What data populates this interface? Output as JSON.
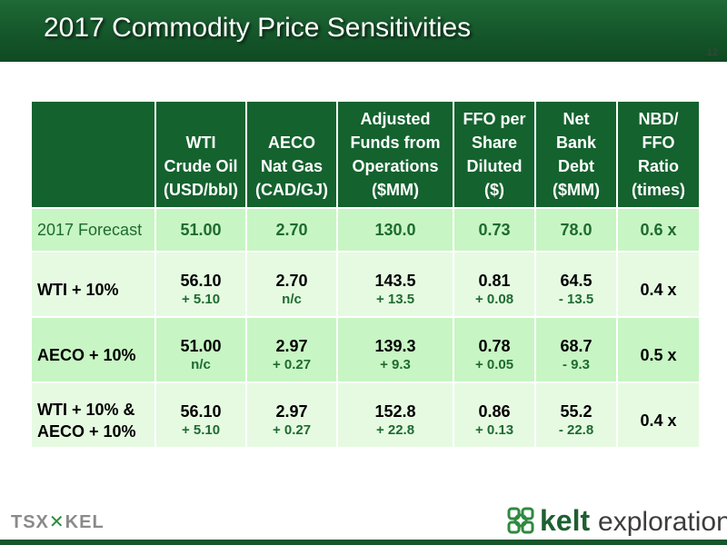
{
  "header": {
    "title": "2017 Commodity Price Sensitivities"
  },
  "slide_number": "12",
  "table": {
    "columns": [
      [
        "WTI",
        "Crude Oil",
        "(USD/bbl)"
      ],
      [
        "AECO",
        "Nat Gas",
        "(CAD/GJ)"
      ],
      [
        "Adjusted",
        "Funds from",
        "Operations",
        "($MM)"
      ],
      [
        "FFO per",
        "Share",
        "Diluted",
        "($)"
      ],
      [
        "Net",
        "Bank",
        "Debt",
        "($MM)"
      ],
      [
        "NBD/",
        "FFO",
        "Ratio",
        "(times)"
      ]
    ],
    "forecast": {
      "label": "2017 Forecast",
      "values": [
        "51.00",
        "2.70",
        "130.0",
        "0.73",
        "78.0",
        "0.6 x"
      ]
    },
    "rows": [
      {
        "label": [
          "WTI + 10%"
        ],
        "values": [
          "56.10",
          "2.70",
          "143.5",
          "0.81",
          "64.5",
          "0.4 x"
        ],
        "changes": [
          "+ 5.10",
          "n/c",
          "+ 13.5",
          "+ 0.08",
          "- 13.5",
          ""
        ]
      },
      {
        "label": [
          "AECO + 10%"
        ],
        "values": [
          "51.00",
          "2.97",
          "139.3",
          "0.78",
          "68.7",
          "0.5 x"
        ],
        "changes": [
          "n/c",
          "+ 0.27",
          "+ 9.3",
          "+ 0.05",
          "- 9.3",
          ""
        ]
      },
      {
        "label": [
          "WTI + 10% &",
          "AECO + 10%"
        ],
        "values": [
          "56.10",
          "2.97",
          "152.8",
          "0.86",
          "55.2",
          "0.4 x"
        ],
        "changes": [
          "+ 5.10",
          "+ 0.27",
          "+ 22.8",
          "+ 0.13",
          "- 22.8",
          ""
        ]
      }
    ]
  },
  "footer": {
    "tsx_logo": {
      "left": "TSX",
      "right": "KEL"
    },
    "kelt_logo": {
      "word1": "kelt",
      "word2": "exploration",
      "icon": "celtic-knot-icon"
    }
  },
  "colors": {
    "header_green": "#15562a",
    "table_header": "#14622e",
    "row_light": "#e6fae2",
    "row_mid": "#c8f5c4",
    "change_text": "#1e6b30"
  }
}
